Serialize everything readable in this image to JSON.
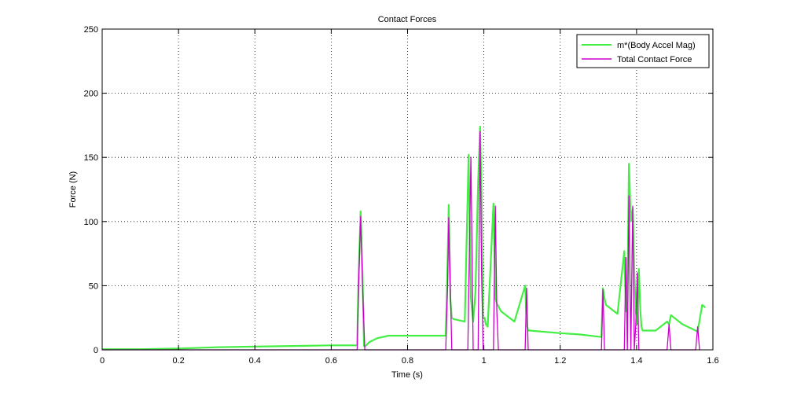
{
  "chart_data": {
    "type": "line",
    "title": "Contact Forces",
    "xlabel": "Time (s)",
    "ylabel": "Force (N)",
    "xlim": [
      0,
      1.6
    ],
    "ylim": [
      0,
      250
    ],
    "x_ticks": [
      0,
      0.2,
      0.4,
      0.6,
      0.8,
      1,
      1.2,
      1.4,
      1.6
    ],
    "x_tick_labels": [
      "0",
      "0.2",
      "0.4",
      "0.6",
      "0.8",
      "1",
      "1.2",
      "1.4",
      "1.6"
    ],
    "y_ticks": [
      0,
      50,
      100,
      150,
      200,
      250
    ],
    "y_tick_labels": [
      "0",
      "50",
      "100",
      "150",
      "200",
      "250"
    ],
    "grid": true,
    "legend_position": "top-right",
    "series": [
      {
        "name": "m*(Body Accel Mag)",
        "color": "#44ee44",
        "x": [
          0,
          0.1,
          0.2,
          0.3,
          0.4,
          0.5,
          0.6,
          0.668,
          0.672,
          0.677,
          0.682,
          0.686,
          0.69,
          0.7,
          0.72,
          0.75,
          0.8,
          0.85,
          0.9,
          0.905,
          0.908,
          0.912,
          0.916,
          0.92,
          0.95,
          0.96,
          0.966,
          0.972,
          0.978,
          0.985,
          0.99,
          0.994,
          0.998,
          1.002,
          1.005,
          1.01,
          1.025,
          1.03,
          1.034,
          1.038,
          1.045,
          1.08,
          1.108,
          1.112,
          1.116,
          1.12,
          1.2,
          1.25,
          1.308,
          1.312,
          1.316,
          1.32,
          1.35,
          1.368,
          1.372,
          1.376,
          1.38,
          1.385,
          1.39,
          1.394,
          1.398,
          1.402,
          1.406,
          1.41,
          1.413,
          1.416,
          1.42,
          1.425,
          1.45,
          1.48,
          1.485,
          1.49,
          1.52,
          1.555,
          1.56,
          1.565,
          1.572,
          1.58
        ],
        "values": [
          0.5,
          0.5,
          1,
          2,
          2.5,
          3,
          3.5,
          3.5,
          60,
          108,
          60,
          3,
          3,
          6,
          9,
          11,
          11,
          11,
          11,
          70,
          113,
          40,
          25,
          24,
          22,
          152,
          40,
          22,
          45,
          130,
          174,
          120,
          25,
          25,
          20,
          18,
          114,
          40,
          36,
          34,
          30,
          22,
          50,
          20,
          15,
          15,
          13,
          12,
          10,
          48,
          40,
          35,
          28,
          77,
          30,
          40,
          145,
          100,
          110,
          60,
          30,
          20,
          63,
          30,
          18,
          15,
          15,
          15,
          15,
          22,
          20,
          27,
          20,
          15,
          14,
          23,
          35,
          33
        ]
      },
      {
        "name": "Total Contact Force",
        "color": "#cc00cc",
        "x": [
          0,
          0.668,
          0.672,
          0.677,
          0.682,
          0.688,
          0.9,
          0.905,
          0.908,
          0.912,
          0.916,
          0.95,
          0.958,
          0.966,
          0.972,
          0.978,
          0.985,
          0.99,
          0.994,
          0.998,
          1.025,
          1.03,
          1.034,
          1.038,
          1.108,
          1.112,
          1.116,
          1.308,
          1.312,
          1.316,
          1.368,
          1.372,
          1.376,
          1.38,
          1.385,
          1.39,
          1.394,
          1.398,
          1.402,
          1.406,
          1.41,
          1.413,
          1.416,
          1.48,
          1.485,
          1.49,
          1.555,
          1.56,
          1.565
        ],
        "values": [
          0,
          0,
          50,
          104,
          50,
          0,
          0,
          50,
          103,
          50,
          0,
          0,
          0,
          150,
          0,
          0,
          0,
          170,
          60,
          0,
          0,
          112,
          30,
          0,
          0,
          48,
          0,
          0,
          47,
          0,
          0,
          72,
          0,
          120,
          0,
          112,
          0,
          20,
          60,
          0,
          0,
          0,
          0,
          0,
          20,
          0,
          0,
          18,
          0
        ]
      }
    ]
  }
}
